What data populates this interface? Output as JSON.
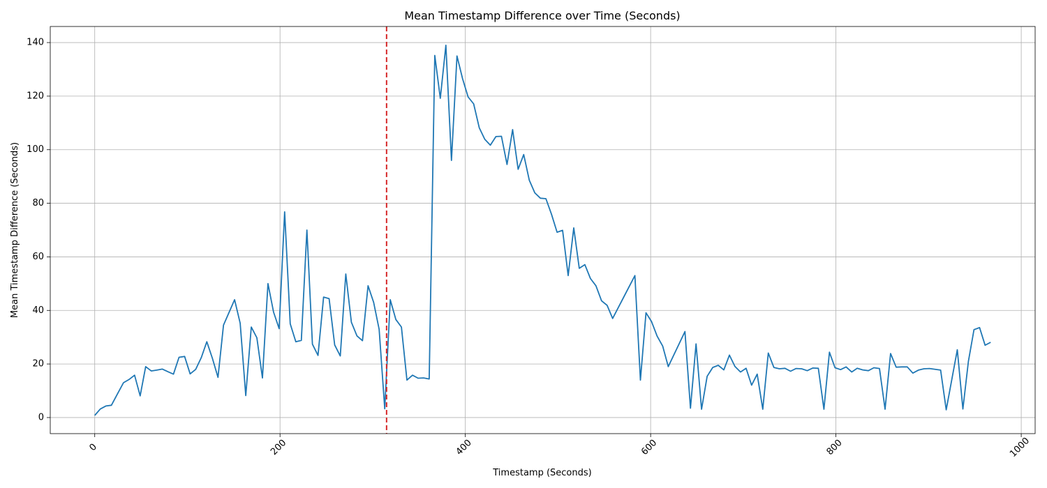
{
  "chart_data": {
    "type": "line",
    "title": "Mean Timestamp Difference over Time (Seconds)",
    "xlabel": "Timestamp (Seconds)",
    "ylabel": "Mean Timestamp Difference (Seconds)",
    "xlim": [
      -48,
      1015
    ],
    "ylim": [
      -6,
      146
    ],
    "xticks": [
      0,
      200,
      400,
      600,
      800,
      1000
    ],
    "xtick_labels": [
      "0",
      "200",
      "400",
      "600",
      "800",
      "1000"
    ],
    "yticks": [
      0,
      20,
      40,
      60,
      80,
      100,
      120,
      140
    ],
    "ytick_labels": [
      "0",
      "20",
      "40",
      "60",
      "80",
      "100",
      "120",
      "140"
    ],
    "xtick_rotation": 45,
    "grid": true,
    "legend": "none",
    "colors": {
      "series": "#1f77b4",
      "marker_line": "#d62728",
      "grid": "#b0b0b0",
      "axis": "#000000"
    },
    "vertical_line": {
      "x": 315,
      "style": "dashed",
      "color": "#d62728"
    },
    "series": [
      {
        "color": "#1f77b4",
        "x": [
          0,
          6,
          12,
          18,
          24,
          31,
          37,
          43,
          49,
          55,
          61,
          67,
          73,
          79,
          85,
          91,
          97,
          103,
          109,
          115,
          121,
          127,
          133,
          139,
          151,
          157,
          163,
          169,
          175,
          181,
          187,
          193,
          199,
          205,
          211,
          217,
          223,
          229,
          235,
          241,
          247,
          253,
          259,
          265,
          271,
          277,
          283,
          289,
          295,
          301,
          307,
          313,
          319,
          325,
          331,
          337,
          343,
          349,
          355,
          361,
          367,
          373,
          379,
          385,
          391,
          397,
          403,
          409,
          415,
          421,
          427,
          433,
          439,
          445,
          451,
          457,
          463,
          469,
          475,
          481,
          487,
          493,
          499,
          505,
          511,
          517,
          523,
          529,
          535,
          541,
          547,
          553,
          559,
          583,
          589,
          595,
          601,
          607,
          613,
          619,
          637,
          643,
          649,
          655,
          661,
          667,
          673,
          679,
          685,
          691,
          697,
          703,
          709,
          715,
          721,
          727,
          733,
          739,
          745,
          751,
          757,
          763,
          769,
          775,
          781,
          787,
          793,
          799,
          805,
          811,
          817,
          823,
          829,
          835,
          841,
          847,
          853,
          859,
          865,
          871,
          877,
          883,
          889,
          895,
          901,
          913,
          919,
          931,
          937,
          943,
          949,
          955,
          961,
          967
        ],
        "y": [
          0.8,
          3.2,
          4.3,
          4.6,
          8.5,
          13.0,
          14.2,
          15.8,
          8.1,
          19.0,
          17.4,
          17.7,
          18.1,
          17.1,
          16.2,
          22.5,
          22.8,
          16.3,
          18.0,
          22.4,
          28.3,
          22.1,
          15.0,
          34.5,
          44.0,
          35.2,
          8.2,
          33.8,
          29.8,
          14.8,
          50.0,
          39.4,
          33.2,
          76.8,
          35.0,
          28.3,
          28.8,
          70.0,
          27.4,
          23.2,
          45.0,
          44.4,
          27.1,
          23.0,
          53.6,
          35.6,
          30.5,
          28.7,
          49.2,
          43.0,
          32.9,
          3.3,
          44.0,
          36.6,
          33.8,
          14.0,
          15.8,
          14.7,
          14.8,
          14.4,
          135.2,
          119.2,
          139.0,
          96.0,
          135.0,
          126.5,
          119.7,
          117.1,
          108.2,
          103.9,
          101.7,
          104.9,
          105.0,
          94.5,
          107.5,
          92.7,
          98.2,
          88.6,
          83.9,
          81.9,
          81.7,
          75.9,
          69.2,
          69.9,
          53.0,
          70.8,
          55.7,
          57.1,
          51.9,
          49.2,
          43.6,
          41.9,
          37.0,
          53.0,
          14.0,
          39.1,
          35.8,
          30.4,
          26.7,
          19.0,
          32.1,
          3.5,
          27.5,
          3.1,
          15.4,
          18.7,
          19.5,
          17.8,
          23.3,
          19.1,
          17.0,
          18.4,
          12.1,
          16.2,
          3.1,
          24.1,
          18.7,
          18.2,
          18.4,
          17.3,
          18.3,
          18.2,
          17.5,
          18.5,
          18.4,
          3.1,
          24.4,
          18.6,
          17.9,
          18.9,
          17.0,
          18.4,
          17.8,
          17.5,
          18.6,
          18.3,
          3.1,
          23.9,
          18.8,
          18.9,
          18.9,
          16.6,
          17.7,
          18.2,
          18.3,
          17.7,
          2.9,
          25.3,
          3.2,
          21.0,
          32.8,
          33.6,
          27.0,
          28.1
        ]
      }
    ]
  }
}
